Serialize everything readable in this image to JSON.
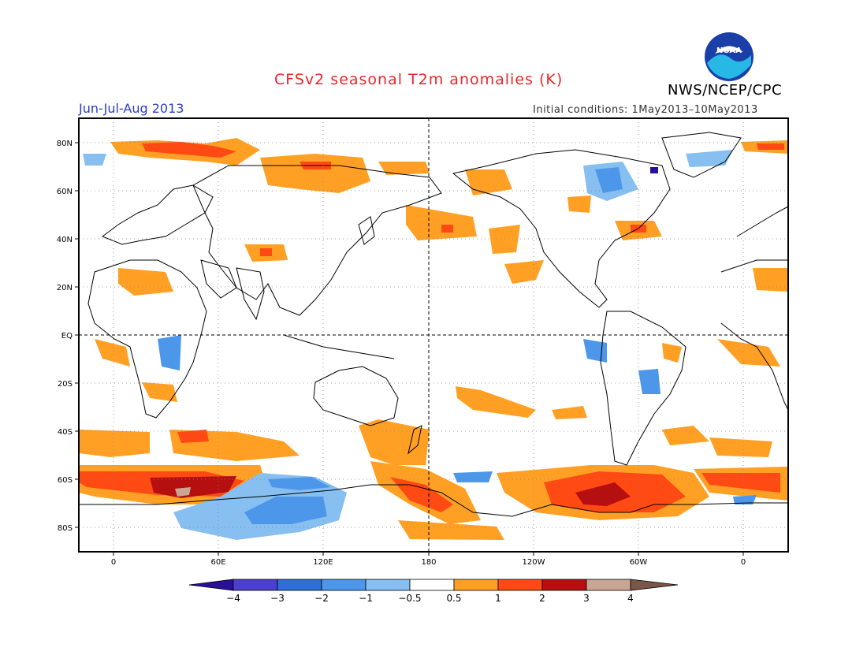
{
  "header": {
    "title": "CFSv2 seasonal T2m anomalies (K)",
    "period": "Jun-Jul-Aug 2013",
    "initial_conditions": "Initial conditions: 1May2013–10May2013",
    "org": "NWS/NCEP/CPC",
    "logo_text": "NOAA"
  },
  "axes": {
    "lat_labels": [
      "80N",
      "60N",
      "40N",
      "20N",
      "EQ",
      "20S",
      "40S",
      "60S",
      "80S"
    ],
    "lon_labels": [
      "0",
      "60E",
      "120E",
      "180",
      "120W",
      "60W",
      "0"
    ]
  },
  "colorbar": {
    "labels": [
      "−4",
      "−3",
      "−2",
      "−1",
      "−0.5",
      "0.5",
      "1",
      "2",
      "3",
      "4"
    ],
    "colors": [
      "#2a0f9a",
      "#4a3fcf",
      "#2f6fd6",
      "#4d97ea",
      "#86bff0",
      "#ffffff",
      "#ffa024",
      "#ff4a14",
      "#b60f0f",
      "#c9a593",
      "#7a5648"
    ]
  },
  "colors": {
    "title": "#e8262a",
    "period": "#2a3ccf"
  }
}
